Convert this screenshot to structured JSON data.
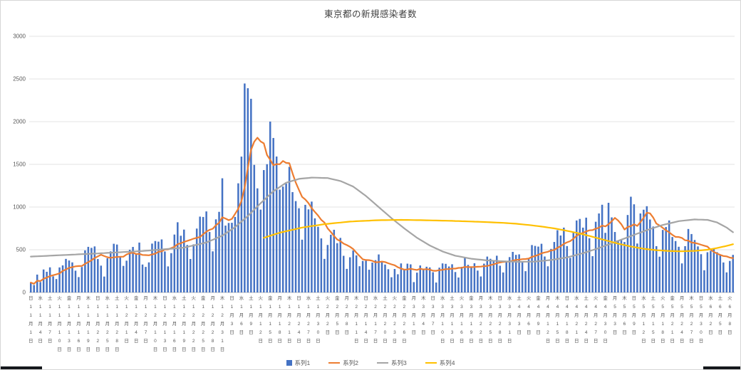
{
  "title": "東京都の新規感染者数",
  "legend": {
    "items": [
      {
        "label": "系列1",
        "color": "#4472C4",
        "marker": "square"
      },
      {
        "label": "系列2",
        "color": "#ED7D31",
        "marker": "line"
      },
      {
        "label": "系列3",
        "color": "#A5A5A5",
        "marker": "line"
      },
      {
        "label": "系列4",
        "color": "#FFC000",
        "marker": "line"
      }
    ]
  },
  "chart_data": {
    "type": "bar",
    "subtype": "combo-bar-and-lines",
    "title": "東京都の新規感染者数",
    "grid": true,
    "legend_position": "bottom",
    "x": {
      "start_date": "2020-11-01",
      "days": 221,
      "tick_interval_days": 3,
      "tick_labels": [
        "日11月1日",
        "水11月4日",
        "土11月7日",
        "火11月10日",
        "金11月13日",
        "月11月16日",
        "木11月19日",
        "日11月22日",
        "水11月25日",
        "土11月28日",
        "火12月1日",
        "金12月4日",
        "月12月7日",
        "木12月10日",
        "日12月13日",
        "水12月16日",
        "土12月19日",
        "火12月22日",
        "金12月25日",
        "月12月28日",
        "木12月31日",
        "日1月3日",
        "水1月6日",
        "土1月9日",
        "火1月12日",
        "金1月15日",
        "月1月18日",
        "木1月21日",
        "日1月24日",
        "水1月27日",
        "土1月30日",
        "火2月2日",
        "金2月5日",
        "月2月8日",
        "木2月11日",
        "日2月14日",
        "水2月17日",
        "土2月20日",
        "火2月23日",
        "金2月26日",
        "月3月1日",
        "木3月4日",
        "日3月7日",
        "水3月10日",
        "土3月13日",
        "火3月16日",
        "金3月19日",
        "月3月22日",
        "木3月25日",
        "日3月28日",
        "水3月31日",
        "土4月3日",
        "火4月6日",
        "金4月9日",
        "月4月12日",
        "木4月15日",
        "日4月18日",
        "水4月21日",
        "土4月24日",
        "火4月27日",
        "金4月30日",
        "月5月3日",
        "木5月6日",
        "日5月9日",
        "水5月12日",
        "土5月15日",
        "火5月18日",
        "金5月21日",
        "月5月24日",
        "木5月27日",
        "日5月30日",
        "水6月2日",
        "土6月5日",
        "火6月8日"
      ]
    },
    "y": {
      "min": 0,
      "max": 3000,
      "tick_interval": 500,
      "tick_labels": [
        "0",
        "500",
        "1000",
        "1500",
        "2000",
        "2500",
        "3000"
      ]
    },
    "series": [
      {
        "name": "系列1",
        "type": "bar",
        "color": "#4472C4",
        "values": [
          116,
          87,
          209,
          122,
          269,
          242,
          294,
          189,
          157,
          293,
          317,
          393,
          374,
          352,
          255,
          180,
          298,
          493,
          534,
          522,
          539,
          391,
          314,
          186,
          401,
          481,
          570,
          561,
          418,
          311,
          372,
          500,
          533,
          449,
          584,
          327,
          299,
          352,
          572,
          602,
          595,
          621,
          480,
          305,
          460,
          678,
          822,
          664,
          736,
          556,
          392,
          563,
          748,
          888,
          884,
          949,
          708,
          481,
          856,
          944,
          1337,
          783,
          814,
          816,
          884,
          1278,
          1591,
          2447,
          2392,
          2268,
          1494,
          1219,
          970,
          1433,
          1502,
          2001,
          1809,
          1592,
          1204,
          1240,
          1274,
          1471,
          1175,
          1070,
          986,
          618,
          1026,
          973,
          1064,
          868,
          769,
          633,
          393,
          556,
          676,
          734,
          577,
          639,
          429,
          276,
          412,
          491,
          434,
          307,
          369,
          371,
          266,
          350,
          378,
          445,
          353,
          327,
          272,
          178,
          275,
          213,
          340,
          270,
          337,
          329,
          121,
          232,
          316,
          279,
          301,
          293,
          237,
          116,
          290,
          340,
          335,
          304,
          330,
          239,
          175,
          300,
          409,
          323,
          303,
          342,
          256,
          187,
          337,
          420,
          394,
          376,
          430,
          313,
          234,
          364,
          414,
          475,
          440,
          446,
          355,
          249,
          399,
          555,
          545,
          537,
          570,
          421,
          306,
          510,
          591,
          729,
          667,
          759,
          543,
          405,
          711,
          843,
          861,
          759,
          876,
          635,
          425,
          828,
          925,
          1027,
          698,
          1050,
          879,
          708,
          609,
          621,
          591,
          907,
          1121,
          1032,
          573,
          925,
          969,
          1010,
          854,
          772,
          542,
          419,
          732,
          766,
          843,
          649,
          602,
          535,
          340,
          542,
          743,
          684,
          614,
          539,
          448,
          260,
          471,
          487,
          508,
          472,
          436,
          351,
          235,
          369,
          440
        ]
      },
      {
        "name": "系列2",
        "type": "line",
        "color": "#ED7D31",
        "derived_from": "系列1",
        "derivation": "7-day moving average",
        "window": 7
      },
      {
        "name": "系列3",
        "type": "line",
        "color": "#A5A5A5",
        "points_day_value": [
          [
            0,
            420
          ],
          [
            20,
            455
          ],
          [
            35,
            485
          ],
          [
            48,
            525
          ],
          [
            55,
            585
          ],
          [
            60,
            665
          ],
          [
            64,
            765
          ],
          [
            68,
            895
          ],
          [
            72,
            1045
          ],
          [
            76,
            1185
          ],
          [
            80,
            1285
          ],
          [
            84,
            1330
          ],
          [
            88,
            1345
          ],
          [
            93,
            1340
          ],
          [
            97,
            1305
          ],
          [
            101,
            1240
          ],
          [
            105,
            1130
          ],
          [
            109,
            1000
          ],
          [
            113,
            870
          ],
          [
            117,
            750
          ],
          [
            121,
            640
          ],
          [
            125,
            550
          ],
          [
            129,
            480
          ],
          [
            133,
            430
          ],
          [
            138,
            395
          ],
          [
            143,
            375
          ],
          [
            148,
            365
          ],
          [
            153,
            358
          ],
          [
            158,
            362
          ],
          [
            163,
            380
          ],
          [
            168,
            410
          ],
          [
            173,
            460
          ],
          [
            178,
            520
          ],
          [
            183,
            590
          ],
          [
            188,
            660
          ],
          [
            193,
            730
          ],
          [
            198,
            790
          ],
          [
            203,
            835
          ],
          [
            208,
            855
          ],
          [
            212,
            850
          ],
          [
            215,
            820
          ],
          [
            218,
            760
          ],
          [
            220,
            705
          ]
        ]
      },
      {
        "name": "系列4",
        "type": "line",
        "color": "#FFC000",
        "points_day_value": [
          [
            73,
            640
          ],
          [
            78,
            700
          ],
          [
            85,
            760
          ],
          [
            92,
            800
          ],
          [
            100,
            830
          ],
          [
            108,
            845
          ],
          [
            116,
            850
          ],
          [
            124,
            845
          ],
          [
            132,
            838
          ],
          [
            140,
            828
          ],
          [
            148,
            815
          ],
          [
            152,
            805
          ],
          [
            156,
            790
          ],
          [
            160,
            772
          ],
          [
            164,
            750
          ],
          [
            168,
            722
          ],
          [
            172,
            690
          ],
          [
            176,
            652
          ],
          [
            180,
            612
          ],
          [
            184,
            572
          ],
          [
            188,
            538
          ],
          [
            192,
            512
          ],
          [
            196,
            495
          ],
          [
            200,
            485
          ],
          [
            204,
            482
          ],
          [
            208,
            487
          ],
          [
            212,
            500
          ],
          [
            215,
            520
          ],
          [
            218,
            545
          ],
          [
            220,
            565
          ]
        ]
      }
    ]
  }
}
